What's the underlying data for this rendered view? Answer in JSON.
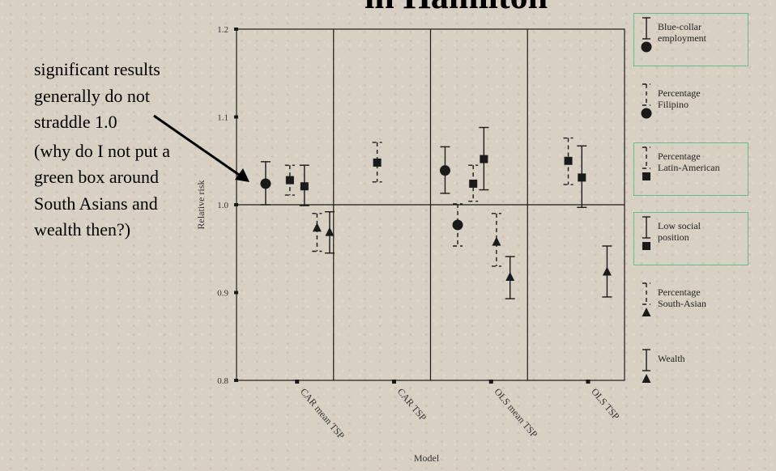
{
  "title": "in Hamilton",
  "annotation": {
    "text": "significant results generally do not straddle 1.0",
    "question": "(why do I not put a green box around South Asians and wealth then?)"
  },
  "colors": {
    "highlight_box": "#5fc08a",
    "ink": "#1a1a1a",
    "background": "#d8d0c2"
  },
  "chart_data": {
    "type": "scatter",
    "subtype": "error-bar",
    "xlabel": "Model",
    "ylabel": "Relative risk",
    "ylim": [
      0.8,
      1.2
    ],
    "yticks": [
      "0.8",
      "0.9",
      "1.0",
      "1.1",
      "1.2"
    ],
    "reference_line": 1.0,
    "categories": [
      "CAR mean TSP",
      "CAR TSP",
      "OLS mean TSP",
      "OLS TSP"
    ],
    "series": [
      {
        "name": "Blue-collar employment",
        "marker": "circle",
        "line": "solid",
        "points": [
          {
            "model": "CAR mean TSP",
            "estimate": 1.024,
            "lower": 1.0,
            "upper": 1.049
          },
          {
            "model": "OLS mean TSP",
            "estimate": 1.039,
            "lower": 1.013,
            "upper": 1.066
          }
        ]
      },
      {
        "name": "Percentage Filipino",
        "marker": "circle",
        "line": "dashed",
        "points": [
          {
            "model": "OLS mean TSP",
            "estimate": 0.977,
            "lower": 0.953,
            "upper": 1.001
          }
        ]
      },
      {
        "name": "Percentage Latin-American",
        "marker": "square",
        "line": "dashed",
        "points": [
          {
            "model": "CAR mean TSP",
            "estimate": 1.028,
            "lower": 1.011,
            "upper": 1.045
          },
          {
            "model": "CAR TSP",
            "estimate": 1.048,
            "lower": 1.026,
            "upper": 1.071
          },
          {
            "model": "OLS mean TSP",
            "estimate": 1.024,
            "lower": 1.004,
            "upper": 1.045
          },
          {
            "model": "OLS TSP",
            "estimate": 1.05,
            "lower": 1.023,
            "upper": 1.076
          }
        ]
      },
      {
        "name": "Low social position",
        "marker": "square",
        "line": "solid",
        "points": [
          {
            "model": "CAR mean TSP",
            "estimate": 1.021,
            "lower": 0.999,
            "upper": 1.045
          },
          {
            "model": "OLS mean TSP",
            "estimate": 1.052,
            "lower": 1.017,
            "upper": 1.088
          },
          {
            "model": "OLS TSP",
            "estimate": 1.031,
            "lower": 0.997,
            "upper": 1.067
          }
        ]
      },
      {
        "name": "Percentage South-Asian",
        "marker": "triangle",
        "line": "dashed",
        "points": [
          {
            "model": "CAR mean TSP",
            "estimate": 0.974,
            "lower": 0.947,
            "upper": 0.99
          },
          {
            "model": "OLS mean TSP",
            "estimate": 0.958,
            "lower": 0.93,
            "upper": 0.99
          }
        ]
      },
      {
        "name": "Wealth",
        "marker": "triangle",
        "line": "solid",
        "points": [
          {
            "model": "CAR mean TSP",
            "estimate": 0.969,
            "lower": 0.945,
            "upper": 0.992
          },
          {
            "model": "OLS mean TSP",
            "estimate": 0.918,
            "lower": 0.893,
            "upper": 0.941
          },
          {
            "model": "OLS TSP",
            "estimate": 0.924,
            "lower": 0.895,
            "upper": 0.953
          }
        ]
      }
    ],
    "legend": {
      "placement": "right",
      "entries": [
        {
          "label": "Blue-collar\nemployment",
          "line": "solid",
          "marker": "circle",
          "highlighted": true
        },
        {
          "label": "Percentage\nFilipino",
          "line": "dashed",
          "marker": "circle",
          "highlighted": false
        },
        {
          "label": "Percentage\nLatin-American",
          "line": "dashed",
          "marker": "square",
          "highlighted": true
        },
        {
          "label": "Low social\nposition",
          "line": "solid",
          "marker": "square",
          "highlighted": true
        },
        {
          "label": "Percentage\nSouth-Asian",
          "line": "dashed",
          "marker": "triangle",
          "highlighted": false
        },
        {
          "label": "Wealth",
          "line": "solid",
          "marker": "triangle",
          "highlighted": false
        }
      ]
    }
  }
}
